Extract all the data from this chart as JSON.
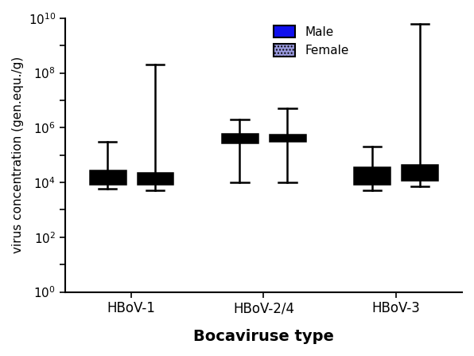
{
  "groups": [
    "HBoV-1",
    "HBoV-2/4",
    "HBoV-3"
  ],
  "male_boxes": [
    {
      "whislo": 6000,
      "q1": 9000,
      "med": 13000,
      "q3": 28000,
      "whishi": 300000.0
    },
    {
      "whislo": 10000.0,
      "q1": 280000.0,
      "med": 380000.0,
      "q3": 600000.0,
      "whishi": 2000000.0
    },
    {
      "whislo": 5000,
      "q1": 9000,
      "med": 16000,
      "q3": 35000,
      "whishi": 200000.0
    }
  ],
  "female_boxes": [
    {
      "whislo": 5000,
      "q1": 9000,
      "med": 13000,
      "q3": 22000,
      "whishi": 200000000.0
    },
    {
      "whislo": 10000.0,
      "q1": 320000.0,
      "med": 420000.0,
      "q3": 550000.0,
      "whishi": 5000000.0
    },
    {
      "whislo": 7000,
      "q1": 12000,
      "med": 20000,
      "q3": 45000,
      "whishi": 6000000000.0
    }
  ],
  "male_color": "#1010EE",
  "female_color": "#9999DD",
  "ylabel": "virus concentration (gen.equ./g)",
  "xlabel": "Bocaviruse type",
  "ymin": 1,
  "ymax": 10000000000.0,
  "yticks_labeled": [
    0,
    2,
    4,
    6,
    8,
    10
  ],
  "legend_male": "Male",
  "legend_female": "Female"
}
